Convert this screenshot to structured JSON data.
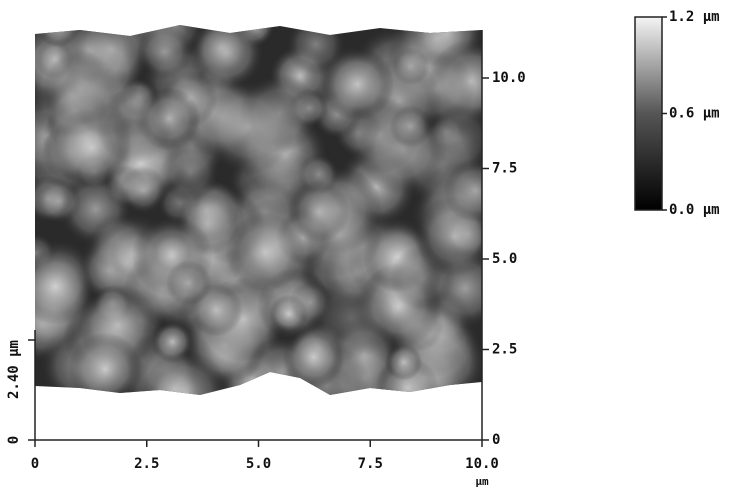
{
  "chart_data": {
    "type": "surface",
    "x_label": "µm",
    "xlim": [
      0,
      10
    ],
    "xticks": [
      0,
      2.5,
      {
        "value": 5,
        "label": "5.0"
      },
      7.5,
      {
        "value": 10,
        "label": "10.0"
      }
    ],
    "ylim": [
      0,
      10
    ],
    "yticks": [
      0,
      2.5,
      {
        "value": 5,
        "label": "5.0"
      },
      7.5,
      {
        "value": 10,
        "label": "10.0"
      }
    ],
    "zlim": [
      0,
      2.4
    ],
    "zticks": [
      0,
      {
        "value": 2.4,
        "label": "2.40 µm"
      }
    ],
    "colorbar_lim": [
      0,
      1.2
    ],
    "colorbar_ticks": [
      {
        "value": 0,
        "label": "0.0 µm"
      },
      {
        "value": 0.6,
        "label": "0.6 µm"
      },
      {
        "value": 1.2,
        "label": "1.2 µm"
      }
    ]
  }
}
